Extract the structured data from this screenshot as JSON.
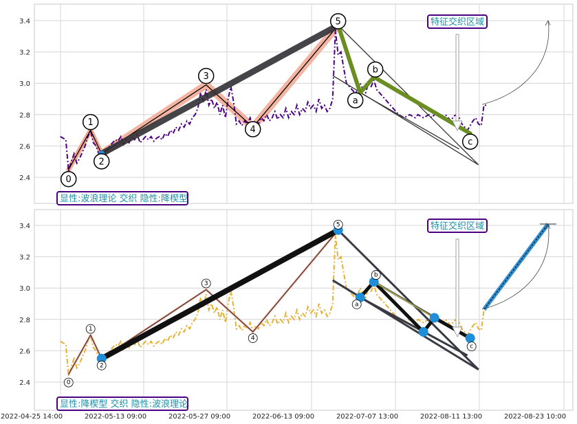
{
  "colors": {
    "top_price": "#4b0082",
    "bottom_price": "#e8b030",
    "salmon": "#f2a792",
    "dark": "#303035",
    "green": "#6b8e23",
    "blue_dot": "#1f8ed8",
    "box_border": "#4b0082",
    "box_text": "#1d8fa8"
  },
  "chart_data": [
    {
      "type": "line",
      "panel": "top",
      "annotation_box": "显性:波浪理论 交织 隐性:降楔型",
      "region_label": "特征交织区域",
      "ylim": [
        2.22,
        3.5
      ],
      "yticks": [
        "3.4",
        "3.2",
        "3.0",
        "2.8",
        "2.6",
        "2.4"
      ],
      "wave_points": [
        {
          "label": "0",
          "x": 3,
          "y": 2.45
        },
        {
          "label": "1",
          "x": 11,
          "y": 2.7
        },
        {
          "label": "2",
          "x": 15,
          "y": 2.55
        },
        {
          "label": "3",
          "x": 53,
          "y": 2.99
        },
        {
          "label": "4",
          "x": 70,
          "y": 2.72
        },
        {
          "label": "5",
          "x": 101,
          "y": 3.37
        },
        {
          "label": "a",
          "x": 109,
          "y": 2.94
        },
        {
          "label": "b",
          "x": 114,
          "y": 3.04
        },
        {
          "label": "c",
          "x": 149,
          "y": 2.68
        }
      ],
      "price_series": [
        2.66,
        2.65,
        2.64,
        2.44,
        2.5,
        2.55,
        2.49,
        2.52,
        2.56,
        2.6,
        2.66,
        2.7,
        2.62,
        2.6,
        2.55,
        2.54,
        2.56,
        2.58,
        2.6,
        2.62,
        2.64,
        2.63,
        2.66,
        2.61,
        2.64,
        2.62,
        2.66,
        2.64,
        2.67,
        2.62,
        2.64,
        2.66,
        2.64,
        2.66,
        2.63,
        2.65,
        2.66,
        2.64,
        2.68,
        2.66,
        2.7,
        2.68,
        2.72,
        2.7,
        2.74,
        2.72,
        2.76,
        2.74,
        2.78,
        2.8,
        2.84,
        2.94,
        2.88,
        2.96,
        2.86,
        2.9,
        2.84,
        2.88,
        2.8,
        2.86,
        2.78,
        2.9,
        2.98,
        2.88,
        2.74,
        2.76,
        2.73,
        2.76,
        2.74,
        2.78,
        2.72,
        2.76,
        2.74,
        2.78,
        2.76,
        2.8,
        2.76,
        2.78,
        2.82,
        2.77,
        2.8,
        2.78,
        2.84,
        2.78,
        2.82,
        2.8,
        2.86,
        2.8,
        2.84,
        2.82,
        2.88,
        2.84,
        2.86,
        2.82,
        2.9,
        2.84,
        2.86,
        2.82,
        2.84,
        2.9,
        3.34,
        3.18,
        3.2,
        3.1,
        3.0,
        2.98,
        2.96,
        2.94,
        2.95,
        3.0,
        2.96,
        2.94,
        3.0,
        2.98,
        3.02,
        2.96,
        2.94,
        2.92,
        2.9,
        2.88,
        2.86,
        2.84,
        2.82,
        2.8,
        2.79,
        2.78,
        2.79,
        2.8,
        2.79,
        2.78,
        2.8,
        2.79,
        2.78,
        2.79,
        2.8,
        2.78,
        2.8,
        2.81,
        2.8,
        2.78,
        2.8,
        2.78,
        2.76,
        2.79,
        2.8,
        2.78,
        2.74,
        2.72,
        2.7,
        2.73,
        2.76,
        2.78,
        2.74,
        2.73,
        2.86,
        2.86
      ]
    },
    {
      "type": "line",
      "panel": "bottom",
      "annotation_box": "显性:降楔型 交织 隐性:波浪理论",
      "region_label": "特征交织区域",
      "ylim": [
        2.22,
        3.5
      ],
      "yticks": [
        "3.4",
        "3.2",
        "3.0",
        "2.8",
        "2.6",
        "2.4"
      ],
      "xticks": [
        "2022-04-25 14:00",
        "2022-05-13 09:00",
        "2022-05-27 09:00",
        "2022-06-13 09:00",
        "2022-07-07 13:00",
        "2022-08-11 13:00",
        "2022-08-23 10:00"
      ],
      "wave_points": [
        {
          "label": "0",
          "x": 3,
          "y": 2.45
        },
        {
          "label": "1",
          "x": 11,
          "y": 2.7
        },
        {
          "label": "2",
          "x": 15,
          "y": 2.55
        },
        {
          "label": "3",
          "x": 53,
          "y": 2.99
        },
        {
          "label": "4",
          "x": 70,
          "y": 2.72
        },
        {
          "label": "5",
          "x": 101,
          "y": 3.37
        },
        {
          "label": "a",
          "x": 109,
          "y": 2.94
        },
        {
          "label": "b",
          "x": 114,
          "y": 3.04
        },
        {
          "label": "c",
          "x": 149,
          "y": 2.68
        }
      ],
      "wedge_points": [
        {
          "x": 15,
          "y": 2.55
        },
        {
          "x": 101,
          "y": 3.37
        },
        {
          "x": 109,
          "y": 2.94
        },
        {
          "x": 114,
          "y": 3.04
        },
        {
          "x": 132,
          "y": 2.72
        },
        {
          "x": 136,
          "y": 2.81
        },
        {
          "x": 149,
          "y": 2.68
        }
      ]
    }
  ]
}
